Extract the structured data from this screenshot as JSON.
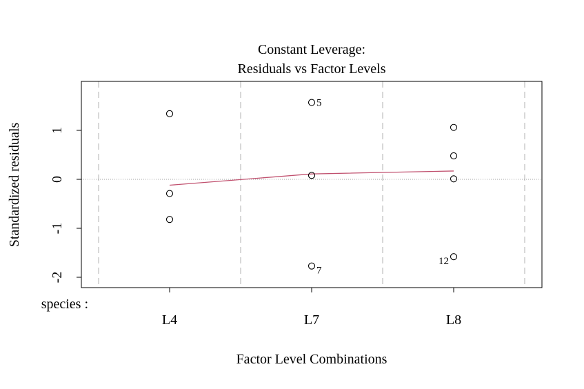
{
  "chart_data": {
    "type": "scatter",
    "title_line1": "Constant Leverage:",
    "title_line2": "Residuals vs Factor Levels",
    "xlabel": "Factor Level Combinations",
    "ylabel": "Standardized residuals",
    "factor_label": "species :",
    "categories": [
      "L4",
      "L7",
      "L8"
    ],
    "ylim": [
      -2.2,
      2.0
    ],
    "yticks": [
      -2,
      -1,
      0,
      1
    ],
    "ytick_labels": [
      "-2",
      "-1",
      "0",
      "1"
    ],
    "points": [
      {
        "category": "L4",
        "y": 1.34,
        "label": ""
      },
      {
        "category": "L4",
        "y": -0.29,
        "label": ""
      },
      {
        "category": "L4",
        "y": -0.82,
        "label": ""
      },
      {
        "category": "L7",
        "y": 1.57,
        "label": "5"
      },
      {
        "category": "L7",
        "y": 0.08,
        "label": ""
      },
      {
        "category": "L7",
        "y": -1.77,
        "label": "7"
      },
      {
        "category": "L8",
        "y": 1.06,
        "label": ""
      },
      {
        "category": "L8",
        "y": 0.48,
        "label": ""
      },
      {
        "category": "L8",
        "y": 0.01,
        "label": ""
      },
      {
        "category": "L8",
        "y": -1.58,
        "label": "12"
      }
    ],
    "smooth_line": {
      "x": [
        "L4",
        "L7",
        "L8"
      ],
      "y": [
        -0.12,
        0.11,
        0.17
      ],
      "color": "#C0506E"
    },
    "reference_line_y": 0,
    "colors": {
      "points": "#000000",
      "separators": "#BEBEBE",
      "reference": "#A0A0A0"
    }
  }
}
